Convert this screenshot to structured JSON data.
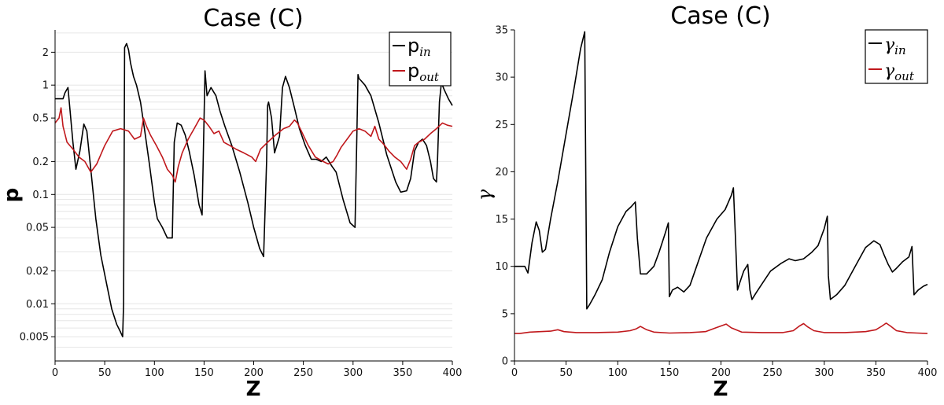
{
  "chart_data": [
    {
      "type": "line",
      "title": "Case (C)",
      "xlabel": "Z",
      "ylabel": "p",
      "xlim": [
        0,
        400
      ],
      "ylim": [
        0.003,
        3.2
      ],
      "yscale": "log",
      "grid": "y-minor",
      "legend": "top-right",
      "xticks": [
        "0",
        "50",
        "100",
        "150",
        "200",
        "250",
        "300",
        "350",
        "400"
      ],
      "yticks": [
        {
          "value": 0.005,
          "label": "0.005"
        },
        {
          "value": 0.01,
          "label": "0.01"
        },
        {
          "value": 0.02,
          "label": "0.02"
        },
        {
          "value": 0.05,
          "label": "0.05"
        },
        {
          "value": 0.1,
          "label": "0.1"
        },
        {
          "value": 0.2,
          "label": "0.2"
        },
        {
          "value": 0.5,
          "label": "0.5"
        },
        {
          "value": 1,
          "label": "1"
        },
        {
          "value": 2,
          "label": "2"
        }
      ],
      "series": [
        {
          "name": "p",
          "name_sub": "in",
          "color": "#000000",
          "x": [
            0,
            8,
            10,
            13,
            18,
            21,
            25,
            29,
            32,
            36,
            41,
            46,
            52,
            57,
            62,
            66,
            68,
            69,
            70,
            72,
            74,
            76,
            79,
            82,
            86,
            90,
            95,
            100,
            103,
            108,
            113,
            118,
            120,
            123,
            127,
            131,
            135,
            140,
            145,
            148,
            150,
            151,
            153,
            157,
            162,
            166,
            171,
            178,
            186,
            194,
            200,
            206,
            210,
            213,
            214,
            215,
            218,
            221,
            226,
            229,
            232,
            236,
            241,
            246,
            252,
            258,
            263,
            268,
            273,
            279,
            283,
            290,
            297,
            302,
            304,
            305,
            306,
            308,
            312,
            318,
            326,
            334,
            343,
            348,
            354,
            358,
            362,
            366,
            370,
            374,
            378,
            381,
            384,
            385,
            387,
            389,
            392,
            396,
            400
          ],
          "y": [
            0.75,
            0.75,
            0.85,
            0.95,
            0.3,
            0.17,
            0.25,
            0.44,
            0.38,
            0.17,
            0.06,
            0.028,
            0.015,
            0.009,
            0.0065,
            0.0055,
            0.005,
            0.01,
            2.2,
            2.4,
            2.1,
            1.6,
            1.2,
            1.0,
            0.7,
            0.4,
            0.19,
            0.085,
            0.06,
            0.05,
            0.04,
            0.04,
            0.3,
            0.45,
            0.43,
            0.35,
            0.25,
            0.15,
            0.08,
            0.065,
            0.5,
            1.35,
            0.8,
            0.95,
            0.8,
            0.58,
            0.42,
            0.28,
            0.16,
            0.085,
            0.05,
            0.032,
            0.027,
            0.2,
            0.65,
            0.7,
            0.5,
            0.24,
            0.34,
            0.95,
            1.2,
            0.95,
            0.62,
            0.4,
            0.28,
            0.21,
            0.21,
            0.2,
            0.22,
            0.18,
            0.16,
            0.09,
            0.055,
            0.05,
            0.4,
            1.25,
            1.15,
            1.1,
            1.0,
            0.8,
            0.45,
            0.23,
            0.13,
            0.105,
            0.108,
            0.14,
            0.25,
            0.3,
            0.32,
            0.28,
            0.2,
            0.14,
            0.13,
            0.2,
            0.7,
            1.05,
            0.9,
            0.75,
            0.65
          ]
        },
        {
          "name": "p",
          "name_sub": "out",
          "color": "#c0181c",
          "x": [
            0,
            4,
            6,
            8,
            12,
            18,
            24,
            30,
            36,
            42,
            50,
            58,
            66,
            74,
            80,
            86,
            89,
            92,
            96,
            102,
            108,
            113,
            118,
            121,
            124,
            128,
            134,
            140,
            146,
            150,
            155,
            160,
            165,
            170,
            176,
            182,
            190,
            198,
            202,
            207,
            214,
            222,
            230,
            236,
            241,
            244,
            248,
            255,
            262,
            270,
            275,
            280,
            284,
            288,
            294,
            300,
            306,
            312,
            318,
            322,
            326,
            329,
            332,
            336,
            342,
            348,
            354,
            358,
            362,
            366,
            372,
            378,
            384,
            390,
            395,
            400
          ],
          "y": [
            0.45,
            0.5,
            0.62,
            0.42,
            0.3,
            0.26,
            0.22,
            0.2,
            0.16,
            0.19,
            0.28,
            0.38,
            0.4,
            0.38,
            0.32,
            0.34,
            0.5,
            0.42,
            0.35,
            0.28,
            0.22,
            0.17,
            0.15,
            0.13,
            0.18,
            0.24,
            0.32,
            0.4,
            0.5,
            0.48,
            0.42,
            0.36,
            0.38,
            0.3,
            0.28,
            0.26,
            0.24,
            0.22,
            0.2,
            0.26,
            0.3,
            0.35,
            0.4,
            0.42,
            0.48,
            0.45,
            0.38,
            0.28,
            0.22,
            0.2,
            0.19,
            0.2,
            0.23,
            0.27,
            0.32,
            0.38,
            0.4,
            0.38,
            0.34,
            0.42,
            0.32,
            0.3,
            0.28,
            0.25,
            0.22,
            0.2,
            0.17,
            0.21,
            0.28,
            0.3,
            0.32,
            0.36,
            0.4,
            0.45,
            0.43,
            0.42
          ]
        }
      ]
    },
    {
      "type": "line",
      "title": "Case (C)",
      "xlabel": "Z",
      "ylabel": "γ",
      "xlim": [
        0,
        400
      ],
      "ylim": [
        0,
        35
      ],
      "yscale": "linear",
      "grid": "none",
      "legend": "top-right",
      "xticks": [
        "0",
        "50",
        "100",
        "150",
        "200",
        "250",
        "300",
        "350",
        "400"
      ],
      "yticks": [
        {
          "value": 0,
          "label": "0"
        },
        {
          "value": 5,
          "label": "5"
        },
        {
          "value": 10,
          "label": "10"
        },
        {
          "value": 15,
          "label": "15"
        },
        {
          "value": 20,
          "label": "20"
        },
        {
          "value": 25,
          "label": "25"
        },
        {
          "value": 30,
          "label": "30"
        },
        {
          "value": 35,
          "label": "35"
        }
      ],
      "series": [
        {
          "name": "γ",
          "name_sub": "in",
          "color": "#000000",
          "x": [
            0,
            10,
            13,
            17,
            21,
            24,
            27,
            30,
            35,
            42,
            50,
            58,
            64,
            68,
            69,
            70,
            73,
            78,
            85,
            92,
            100,
            108,
            113,
            117,
            119,
            122,
            128,
            135,
            140,
            146,
            149,
            150,
            153,
            158,
            164,
            170,
            178,
            186,
            196,
            204,
            210,
            212,
            214,
            216,
            218,
            222,
            226,
            228,
            230,
            234,
            240,
            248,
            258,
            266,
            272,
            280,
            288,
            294,
            300,
            303,
            304,
            306,
            312,
            320,
            330,
            340,
            348,
            354,
            358,
            362,
            366,
            370,
            376,
            382,
            385,
            387,
            391,
            396,
            400
          ],
          "y": [
            10,
            10,
            9.3,
            12.5,
            14.7,
            13.8,
            11.5,
            11.8,
            15,
            19,
            24,
            29,
            33,
            34.8,
            20,
            5.5,
            6,
            7,
            8.6,
            11.5,
            14.2,
            15.8,
            16.3,
            16.8,
            13,
            9.2,
            9.2,
            10,
            11.5,
            13.5,
            14.6,
            6.8,
            7.5,
            7.8,
            7.3,
            8,
            10.5,
            13,
            15,
            16,
            17.5,
            18.3,
            13,
            7.5,
            8.2,
            9.5,
            10.2,
            7.5,
            6.5,
            7.2,
            8.2,
            9.5,
            10.3,
            10.8,
            10.6,
            10.8,
            11.5,
            12.2,
            14,
            15.3,
            9,
            6.5,
            7,
            8,
            10,
            12,
            12.7,
            12.3,
            11.2,
            10.2,
            9.4,
            9.8,
            10.5,
            11,
            12.1,
            7,
            7.5,
            7.9,
            8.1
          ]
        },
        {
          "name": "γ",
          "name_sub": "out",
          "color": "#c0181c",
          "x": [
            0,
            5,
            15,
            25,
            35,
            42,
            48,
            60,
            80,
            100,
            112,
            118,
            122,
            128,
            135,
            150,
            170,
            185,
            195,
            200,
            205,
            210,
            220,
            240,
            260,
            270,
            276,
            280,
            284,
            290,
            300,
            320,
            340,
            350,
            356,
            360,
            364,
            370,
            380,
            390,
            400
          ],
          "y": [
            2.9,
            2.9,
            3.05,
            3.1,
            3.15,
            3.3,
            3.1,
            3.0,
            3.0,
            3.05,
            3.2,
            3.4,
            3.65,
            3.3,
            3.05,
            2.95,
            3.0,
            3.1,
            3.5,
            3.7,
            3.9,
            3.5,
            3.05,
            3.0,
            3.0,
            3.2,
            3.7,
            3.95,
            3.6,
            3.2,
            3.0,
            3.0,
            3.1,
            3.3,
            3.7,
            4.0,
            3.7,
            3.2,
            3.0,
            2.95,
            2.9
          ]
        }
      ]
    }
  ]
}
